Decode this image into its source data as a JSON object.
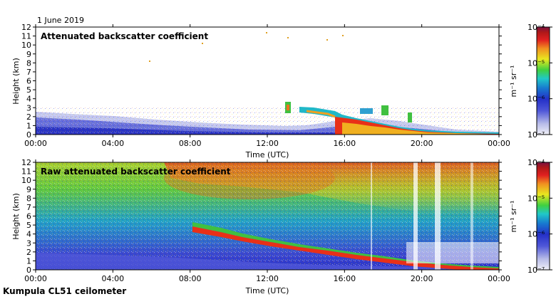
{
  "header": {
    "date": "1 June 2019"
  },
  "footer": {
    "instrument": "Kumpula CL51 ceilometer"
  },
  "colors": {
    "scale": [
      "#f0f0f8",
      "#b8bce8",
      "#5058d8",
      "#2430c8",
      "#1878d0",
      "#20c8c8",
      "#40d040",
      "#e8e820",
      "#f09020",
      "#e02020",
      "#b01818",
      "#7a1040"
    ],
    "aerosol": "#3038c8",
    "cloud_base": "#e83018",
    "cloud_top": "#20c040"
  },
  "chart_data": [
    {
      "type": "heatmap",
      "title": "Attenuated backscatter coefficient",
      "xlabel": "Time (UTC)",
      "ylabel": "Height (km)",
      "xticks": [
        "00:00",
        "04:00",
        "08:00",
        "12:00",
        "16:00",
        "20:00",
        "00:00"
      ],
      "xlim_hours": [
        0,
        24
      ],
      "ylim": [
        0,
        12
      ],
      "yticks": [
        "0",
        "1",
        "2",
        "3",
        "4",
        "5",
        "6",
        "7",
        "8",
        "9",
        "10",
        "11",
        "12"
      ],
      "colorbar": {
        "label": "m⁻¹ sr⁻¹",
        "scale": "log",
        "range": [
          1e-07,
          0.0001
        ],
        "ticks": [
          "10⁻⁴",
          "10⁻⁵",
          "10⁻⁶",
          "10⁻⁷"
        ]
      },
      "features": {
        "boundary_layer_top_km": [
          [
            0,
            2.4
          ],
          [
            4,
            2.0
          ],
          [
            8,
            1.6
          ],
          [
            12,
            1.2
          ],
          [
            14,
            1.1
          ],
          [
            16,
            1.5
          ],
          [
            18,
            1.6
          ],
          [
            20,
            1.3
          ],
          [
            22,
            0.6
          ],
          [
            24,
            0.4
          ]
        ],
        "cloud_base_km": [
          [
            13.5,
            2.9
          ],
          [
            16,
            2.0
          ],
          [
            17,
            1.6
          ],
          [
            18,
            1.4
          ],
          [
            19,
            1.0
          ],
          [
            20,
            0.7
          ],
          [
            22,
            0.4
          ],
          [
            24,
            0.3
          ]
        ]
      }
    },
    {
      "type": "heatmap",
      "title": "Raw attenuated backscatter coefficient",
      "xlabel": "Time (UTC)",
      "ylabel": "Height (km)",
      "xticks": [
        "00:00",
        "04:00",
        "08:00",
        "12:00",
        "16:00",
        "20:00",
        "00:00"
      ],
      "xlim_hours": [
        0,
        24
      ],
      "ylim": [
        0,
        12
      ],
      "yticks": [
        "0",
        "1",
        "2",
        "3",
        "4",
        "5",
        "6",
        "7",
        "8",
        "9",
        "10",
        "11",
        "12"
      ],
      "colorbar": {
        "label": "m⁻¹ sr⁻¹",
        "scale": "log",
        "range": [
          1e-07,
          0.0001
        ],
        "ticks": [
          "10⁻⁴",
          "10⁻⁵",
          "10⁻⁶",
          "10⁻⁷"
        ]
      },
      "features": {
        "cloud_base_km": [
          [
            8,
            3.6
          ],
          [
            10,
            3.3
          ],
          [
            12,
            3.1
          ],
          [
            14,
            2.6
          ],
          [
            16,
            2.0
          ],
          [
            18,
            1.5
          ],
          [
            20,
            0.9
          ],
          [
            22,
            0.5
          ],
          [
            24,
            0.3
          ]
        ]
      }
    }
  ]
}
